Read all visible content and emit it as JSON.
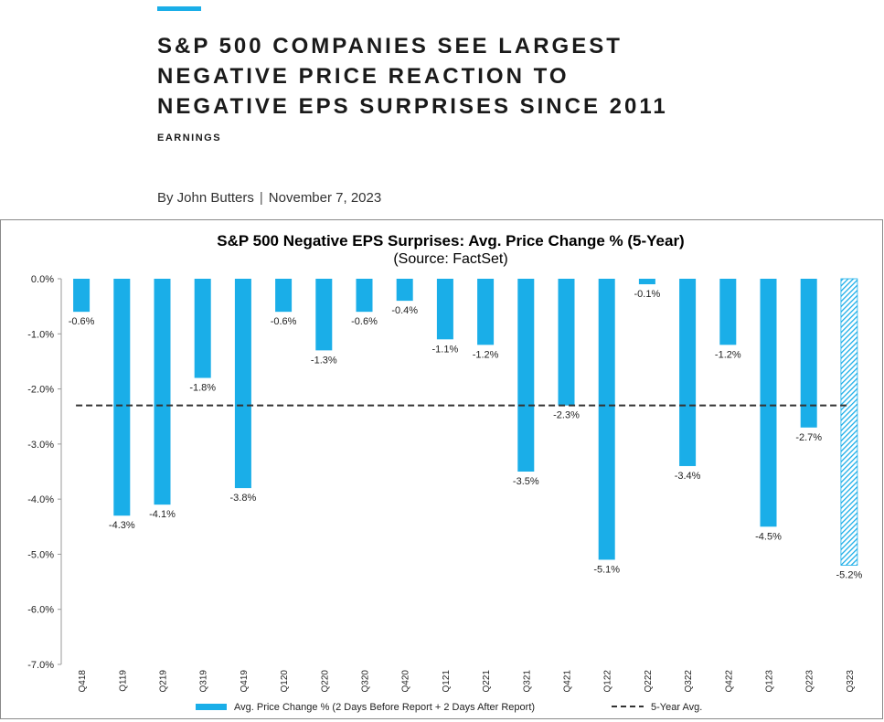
{
  "article": {
    "headline_lines": [
      "S&P 500 COMPANIES SEE LARGEST",
      "NEGATIVE PRICE REACTION TO",
      "NEGATIVE EPS SURPRISES SINCE 2011"
    ],
    "category": "EARNINGS",
    "author": "By John Butters",
    "separator": "|",
    "date": "November 7, 2023"
  },
  "colors": {
    "accent": "#1aaee8",
    "bar": "#1aaee8",
    "avg_line": "#333333"
  },
  "chart_data": {
    "type": "bar",
    "title": "S&P 500 Negative EPS Surprises: Avg. Price Change % (5-Year)",
    "subtitle": "(Source: FactSet)",
    "categories": [
      "Q418",
      "Q119",
      "Q219",
      "Q319",
      "Q419",
      "Q120",
      "Q220",
      "Q320",
      "Q420",
      "Q121",
      "Q221",
      "Q321",
      "Q421",
      "Q122",
      "Q222",
      "Q322",
      "Q422",
      "Q123",
      "Q223",
      "Q323"
    ],
    "values": [
      -0.6,
      -4.3,
      -4.1,
      -1.8,
      -3.8,
      -0.6,
      -1.3,
      -0.6,
      -0.4,
      -1.1,
      -1.2,
      -3.5,
      -2.3,
      -5.1,
      -0.1,
      -3.4,
      -1.2,
      -4.5,
      -2.7,
      -5.2
    ],
    "data_labels": [
      "-0.6%",
      "-4.3%",
      "-4.1%",
      "-1.8%",
      "-3.8%",
      "-0.6%",
      "-1.3%",
      "-0.6%",
      "-0.4%",
      "-1.1%",
      "-1.2%",
      "-3.5%",
      "-2.3%",
      "-5.1%",
      "-0.1%",
      "-3.4%",
      "-1.2%",
      "-4.5%",
      "-2.7%",
      "-5.2%"
    ],
    "hatched_index": 19,
    "avg_5yr": -2.3,
    "ylim": [
      -7.0,
      0.0
    ],
    "yticks": [
      0.0,
      -1.0,
      -2.0,
      -3.0,
      -4.0,
      -5.0,
      -6.0,
      -7.0
    ],
    "ytick_labels": [
      "0.0%",
      "-1.0%",
      "-2.0%",
      "-3.0%",
      "-4.0%",
      "-5.0%",
      "-6.0%",
      "-7.0%"
    ],
    "legend": {
      "position": "bottom",
      "bar_label": "Avg. Price Change % (2 Days Before Report + 2 Days After Report)",
      "line_label": "5-Year Avg."
    }
  }
}
